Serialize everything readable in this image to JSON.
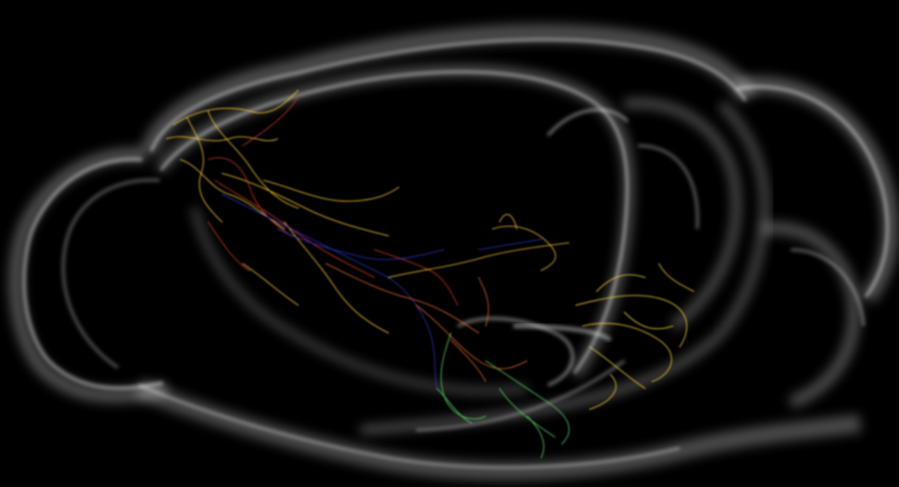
{
  "scene": {
    "background": "#000000",
    "subject": "brain-volume",
    "tissue_color": "#e8e8e8",
    "neuron_palette": [
      "#ffd23a",
      "#f2b02a",
      "#e2572a",
      "#c8231e",
      "#2a3bd6",
      "#1e6be0",
      "#54d66a",
      "#a6e04a"
    ]
  }
}
